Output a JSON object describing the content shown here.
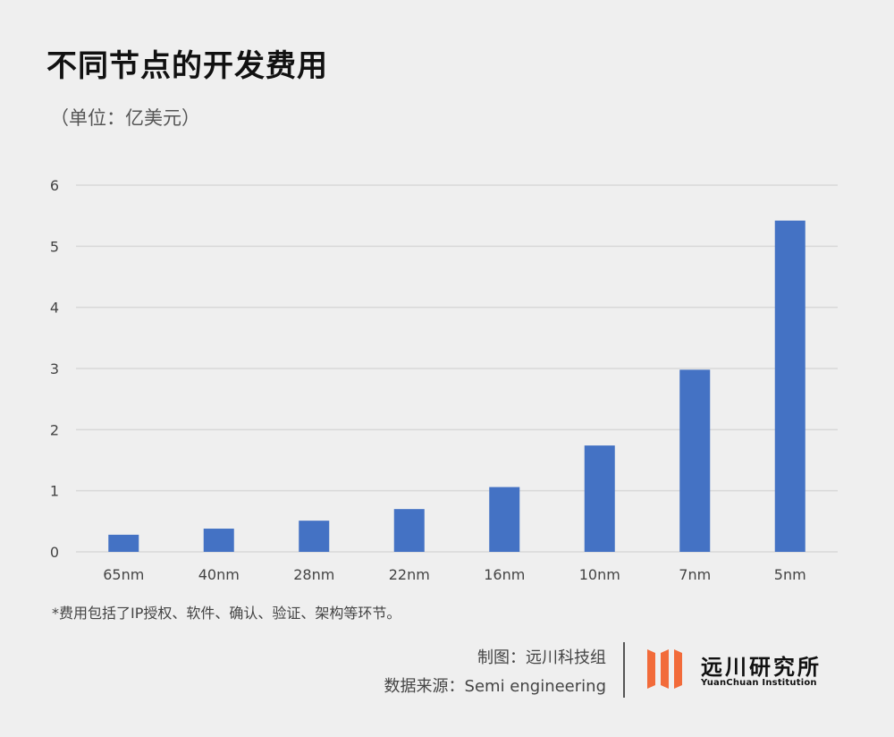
{
  "header": {
    "title": "不同节点的开发费用",
    "unit": "（单位：亿美元）"
  },
  "footnote": "*费用包括了IP授权、软件、确认、验证、架构等环节。",
  "credits": {
    "made_by": "制图：远川科技组",
    "source": "数据来源：Semi engineering"
  },
  "logo": {
    "name_cn": "远川研究所",
    "name_en": "YuanChuan Institution",
    "accent_color": "#f26b3a"
  },
  "chart_data": {
    "type": "bar",
    "categories": [
      "65nm",
      "40nm",
      "28nm",
      "22nm",
      "16nm",
      "10nm",
      "7nm",
      "5nm"
    ],
    "values": [
      0.28,
      0.38,
      0.51,
      0.7,
      1.06,
      1.74,
      2.98,
      5.42
    ],
    "ylim": [
      0,
      6
    ],
    "yticks": [
      0,
      1,
      2,
      3,
      4,
      5,
      6
    ],
    "grid": true,
    "bar_color": "#4472c4",
    "grid_color": "#d9d9d9"
  }
}
